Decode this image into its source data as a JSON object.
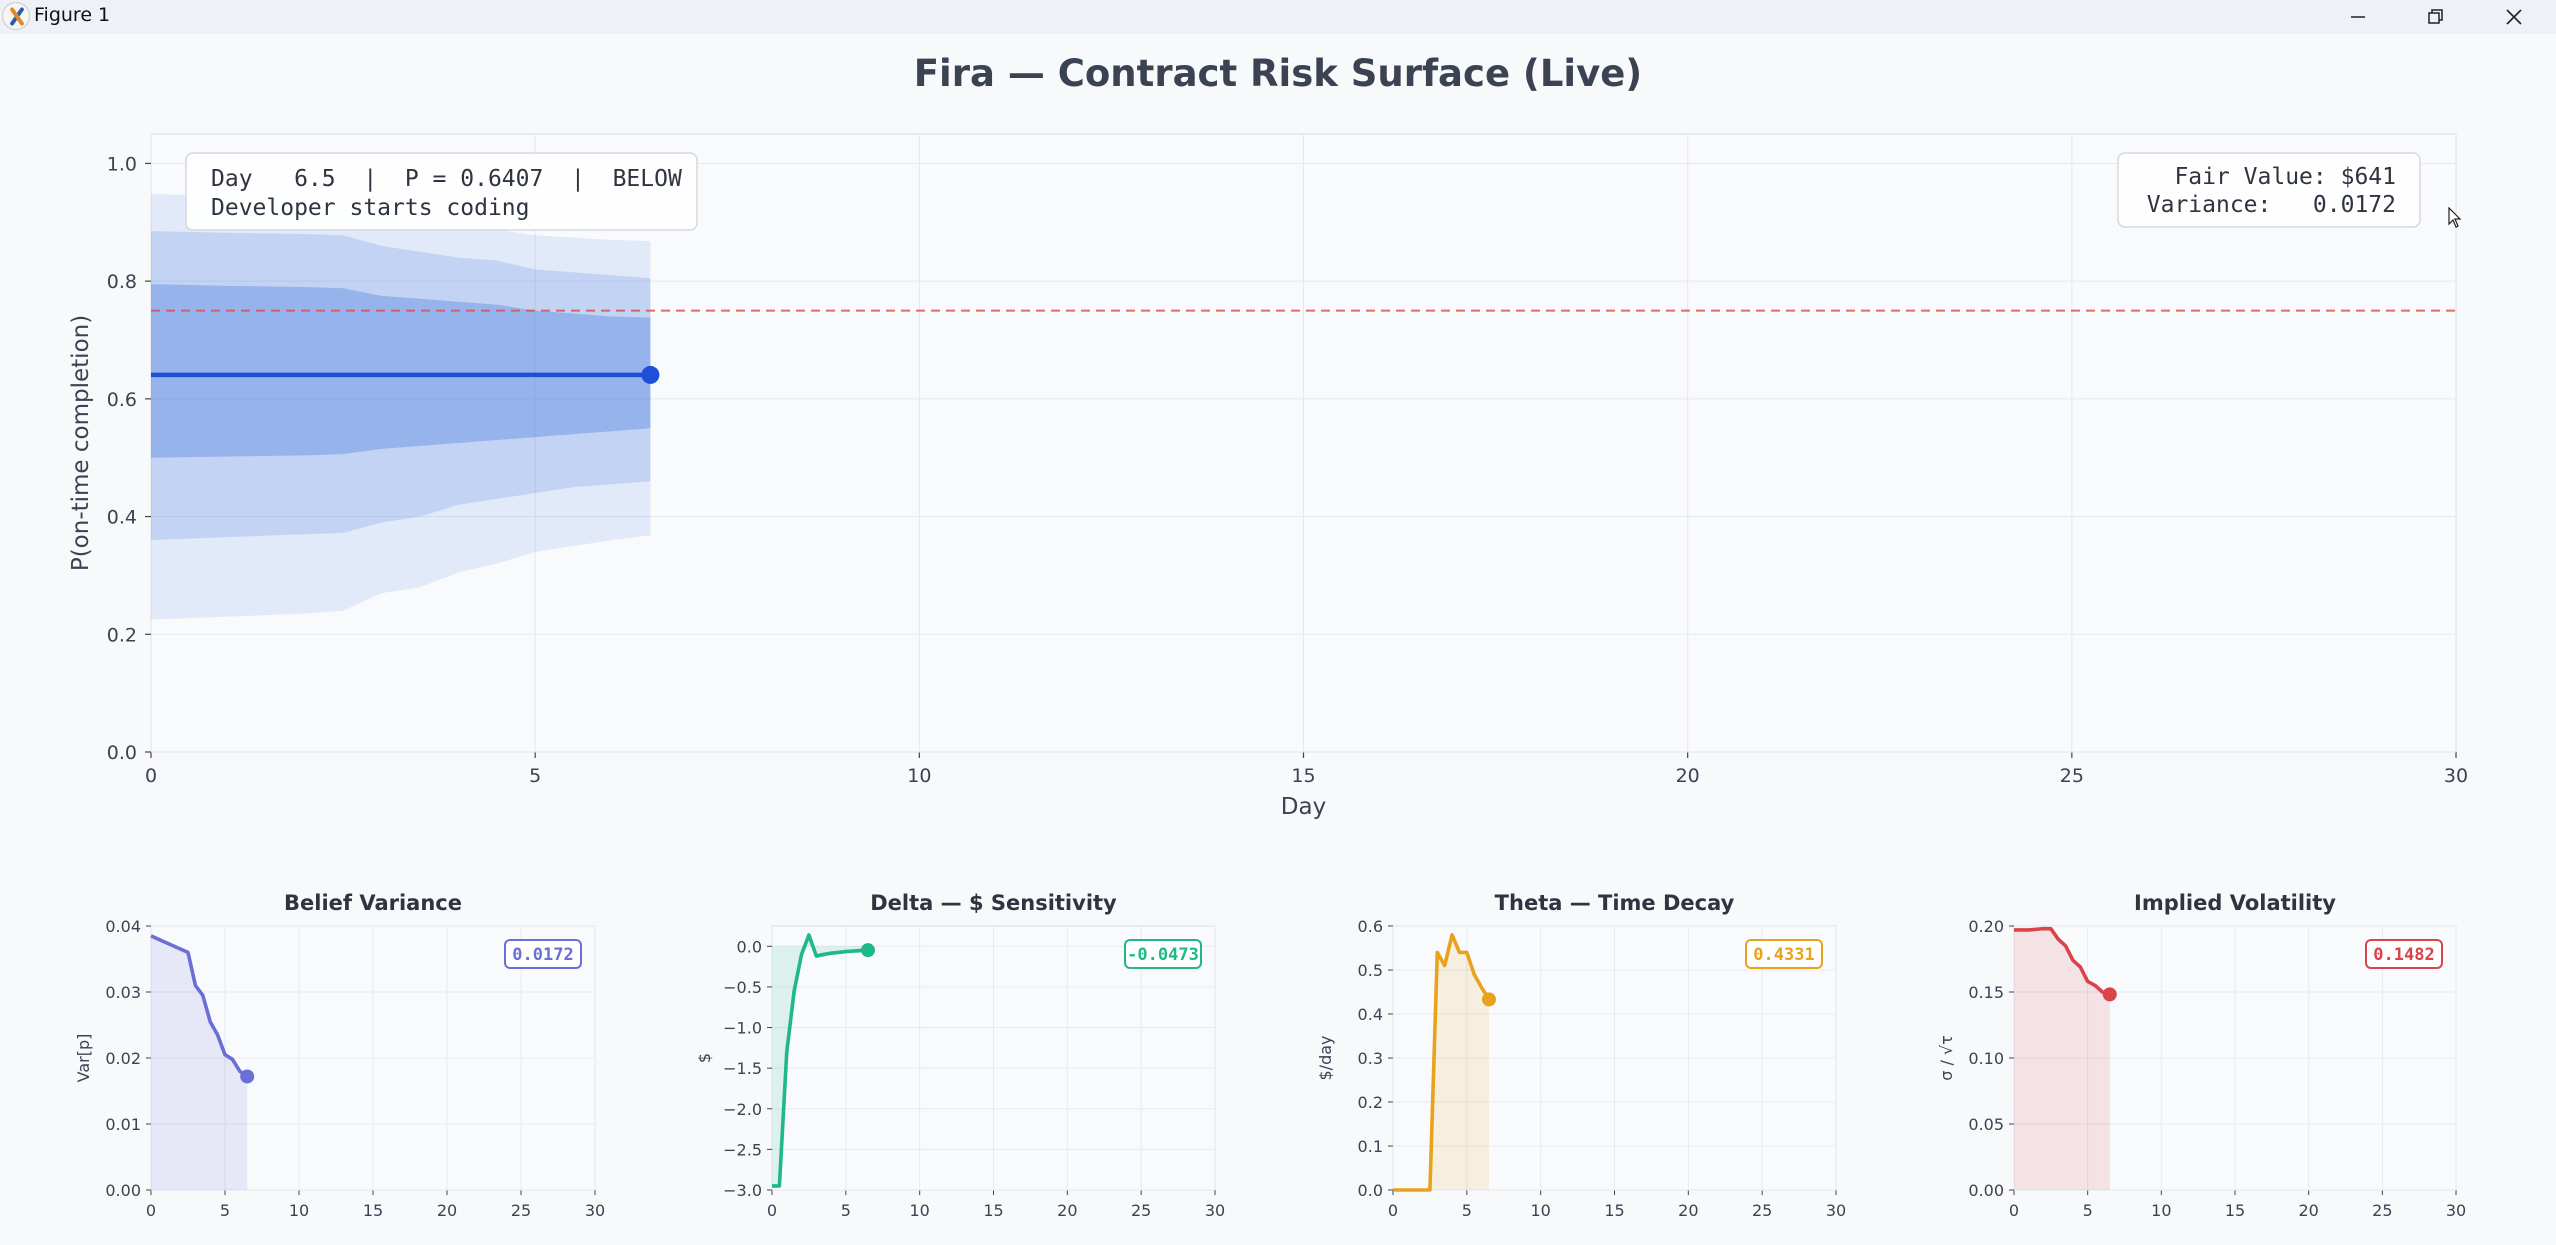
{
  "window": {
    "title": "Figure 1",
    "minimize_icon": "minimize-icon",
    "restore_icon": "restore-icon",
    "close_icon": "close-icon"
  },
  "figure": {
    "suptitle": "Fira  —  Contract Risk Surface (Live)"
  },
  "main_chart": {
    "type": "line",
    "xlabel": "Day",
    "ylabel": "P(on-time completion)",
    "xlim": [
      0,
      30
    ],
    "ylim": [
      0,
      1.05
    ],
    "xticks": [
      0,
      5,
      10,
      15,
      20,
      25,
      30
    ],
    "yticks": [
      0.0,
      0.2,
      0.4,
      0.6,
      0.8,
      1.0
    ],
    "grid": true,
    "threshold": 0.75,
    "threshold_color": "#d9534f",
    "line_color": "#1f4fd6",
    "band_color": "#4a7be0",
    "x": [
      0,
      1,
      2,
      2.5,
      3,
      3.5,
      4,
      4.5,
      5,
      5.5,
      6,
      6.5
    ],
    "p": [
      0.6407,
      0.6407,
      0.6407,
      0.6407,
      0.6407,
      0.6407,
      0.6407,
      0.6407,
      0.6407,
      0.6407,
      0.6407,
      0.6407
    ],
    "band_inner": {
      "lower": [
        0.5,
        0.502,
        0.504,
        0.506,
        0.515,
        0.52,
        0.525,
        0.53,
        0.535,
        0.54,
        0.545,
        0.55
      ],
      "upper": [
        0.795,
        0.792,
        0.79,
        0.788,
        0.775,
        0.77,
        0.765,
        0.76,
        0.75,
        0.745,
        0.74,
        0.738
      ]
    },
    "band_middle": {
      "lower": [
        0.36,
        0.365,
        0.37,
        0.372,
        0.39,
        0.4,
        0.42,
        0.43,
        0.44,
        0.45,
        0.455,
        0.46
      ],
      "upper": [
        0.885,
        0.882,
        0.88,
        0.878,
        0.86,
        0.85,
        0.84,
        0.835,
        0.82,
        0.815,
        0.81,
        0.805
      ]
    },
    "band_outer": {
      "lower": [
        0.225,
        0.23,
        0.235,
        0.24,
        0.27,
        0.28,
        0.305,
        0.32,
        0.34,
        0.35,
        0.36,
        0.368
      ],
      "upper": [
        0.948,
        0.945,
        0.94,
        0.938,
        0.92,
        0.91,
        0.895,
        0.888,
        0.878,
        0.874,
        0.87,
        0.868
      ]
    },
    "status_box": {
      "line1": "Day   6.5  |  P = 0.6407  |  BELOW",
      "line2": "Developer starts coding"
    },
    "value_box": {
      "line1": "Fair Value: $641",
      "line2": "Variance:   0.0172"
    }
  },
  "chart_data": [
    {
      "type": "area",
      "title": "Belief Variance",
      "ylabel": "Var[p]",
      "color": "#6a6fd6",
      "xlim": [
        0,
        30
      ],
      "ylim": [
        0,
        0.04
      ],
      "xticks": [
        0,
        5,
        10,
        15,
        20,
        25,
        30
      ],
      "yticks": [
        0.0,
        0.01,
        0.02,
        0.03,
        0.04
      ],
      "tick_labels": [
        "0.00",
        "0.01",
        "0.02",
        "0.03",
        "0.04"
      ],
      "x": [
        0,
        1,
        2,
        2.5,
        3,
        3.5,
        4,
        4.5,
        5,
        5.5,
        6,
        6.5
      ],
      "y": [
        0.0385,
        0.0375,
        0.0365,
        0.036,
        0.031,
        0.0295,
        0.0255,
        0.0235,
        0.0205,
        0.0198,
        0.018,
        0.0172
      ],
      "badge": "0.0172"
    },
    {
      "type": "area",
      "title": "Delta — $ Sensitivity",
      "ylabel": "$",
      "color": "#1fb88a",
      "xlim": [
        0,
        30
      ],
      "ylim": [
        -3.0,
        0.25
      ],
      "xticks": [
        0,
        5,
        10,
        15,
        20,
        25,
        30
      ],
      "yticks": [
        0.0,
        -0.5,
        -1.0,
        -1.5,
        -2.0,
        -2.5,
        -3.0
      ],
      "tick_labels": [
        "0.0",
        "−0.5",
        "−1.0",
        "−1.5",
        "−2.0",
        "−2.5",
        "−3.0"
      ],
      "x": [
        0,
        0.5,
        1,
        1.5,
        2,
        2.5,
        3,
        3.5,
        4,
        4.5,
        5,
        5.5,
        6,
        6.5
      ],
      "y": [
        -2.95,
        -2.95,
        -1.3,
        -0.55,
        -0.1,
        0.14,
        -0.12,
        -0.1,
        -0.085,
        -0.075,
        -0.065,
        -0.058,
        -0.052,
        -0.0473
      ],
      "badge": "-0.0473"
    },
    {
      "type": "area",
      "title": "Theta — Time Decay",
      "ylabel": "$/day",
      "color": "#e8a21c",
      "xlim": [
        0,
        30
      ],
      "ylim": [
        0,
        0.6
      ],
      "xticks": [
        0,
        5,
        10,
        15,
        20,
        25,
        30
      ],
      "yticks": [
        0.0,
        0.1,
        0.2,
        0.3,
        0.4,
        0.5,
        0.6
      ],
      "tick_labels": [
        "0.0",
        "0.1",
        "0.2",
        "0.3",
        "0.4",
        "0.5",
        "0.6"
      ],
      "x": [
        0,
        1,
        2,
        2.5,
        3,
        3.5,
        4,
        4.5,
        5,
        5.5,
        6,
        6.5
      ],
      "y": [
        0,
        0,
        0,
        0,
        0.54,
        0.51,
        0.58,
        0.54,
        0.54,
        0.49,
        0.46,
        0.4331
      ],
      "badge": "0.4331"
    },
    {
      "type": "area",
      "title": "Implied Volatility",
      "ylabel": "σ / √τ",
      "color": "#d9434a",
      "xlim": [
        0,
        30
      ],
      "ylim": [
        0,
        0.2
      ],
      "xticks": [
        0,
        5,
        10,
        15,
        20,
        25,
        30
      ],
      "yticks": [
        0.0,
        0.05,
        0.1,
        0.15,
        0.2
      ],
      "tick_labels": [
        "0.00",
        "0.05",
        "0.10",
        "0.15",
        "0.20"
      ],
      "x": [
        0,
        1,
        2,
        2.5,
        3,
        3.5,
        4,
        4.5,
        5,
        5.5,
        6,
        6.5
      ],
      "y": [
        0.197,
        0.197,
        0.198,
        0.198,
        0.19,
        0.185,
        0.174,
        0.169,
        0.158,
        0.155,
        0.15,
        0.1482
      ],
      "badge": "0.1482"
    }
  ]
}
